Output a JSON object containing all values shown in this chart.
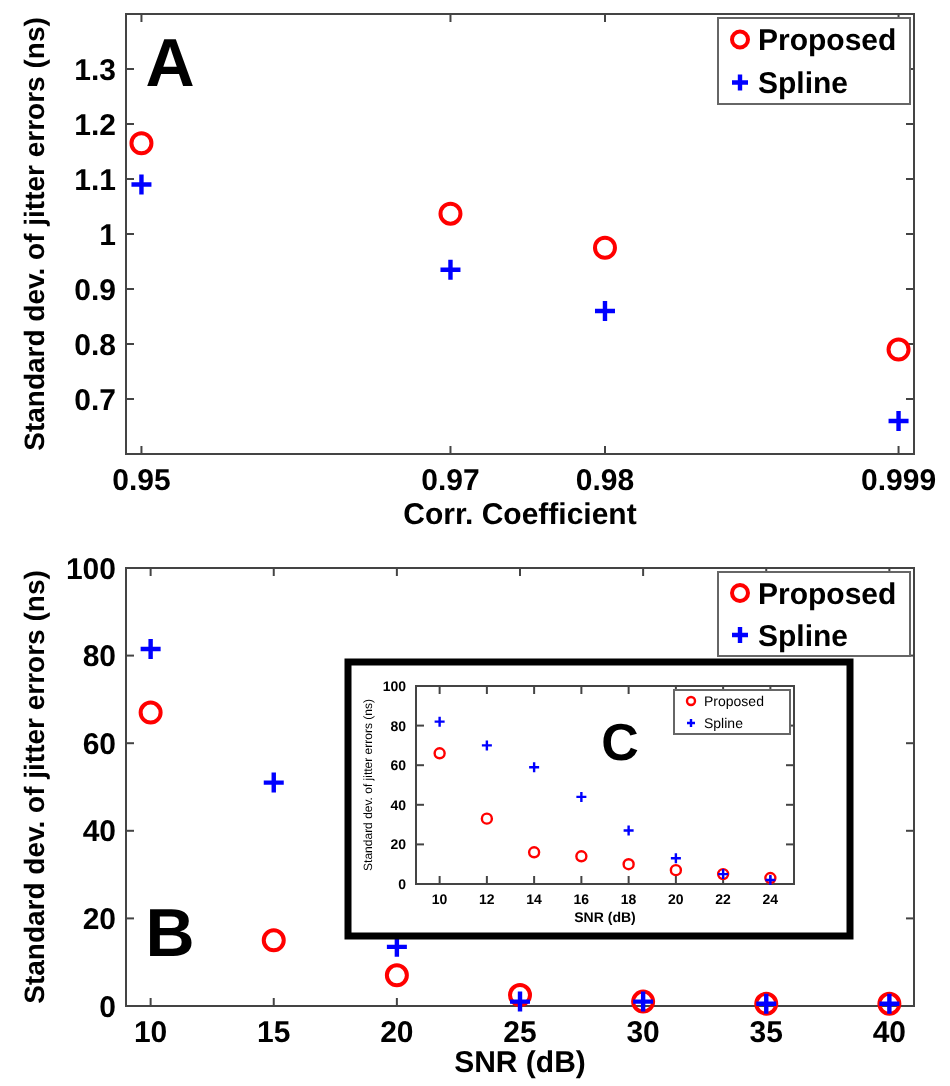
{
  "chart_data": [
    {
      "type": "scatter",
      "xlabel": "Corr. Coefficient",
      "ylabel": "Standard dev. of jitter errors (ns)",
      "annotations": [
        "A"
      ],
      "x": [
        0.95,
        0.97,
        0.98,
        0.999
      ],
      "xlim": [
        0.949,
        1.0
      ],
      "xticks": [
        0.95,
        0.97,
        0.98,
        0.999
      ],
      "ylim": [
        0.6,
        1.4
      ],
      "yticks": [
        0.7,
        0.8,
        0.9,
        1,
        1.1,
        1.2,
        1.3
      ],
      "legend": "top right",
      "series": [
        {
          "name": "Proposed",
          "color": "#ff0000",
          "marker": "circle",
          "values": [
            1.165,
            1.037,
            0.975,
            0.79
          ]
        },
        {
          "name": "Spline",
          "color": "#0000ff",
          "marker": "cross",
          "values": [
            1.09,
            0.935,
            0.86,
            0.66
          ]
        }
      ]
    },
    {
      "type": "scatter",
      "xlabel": "SNR (dB)",
      "ylabel": "Standard dev. of jitter errors (ns)",
      "annotations": [
        "B"
      ],
      "x": [
        10,
        15,
        20,
        25,
        30,
        35,
        40
      ],
      "xlim": [
        9,
        41
      ],
      "xticks": [
        10,
        15,
        20,
        25,
        30,
        35,
        40
      ],
      "ylim": [
        0,
        100
      ],
      "yticks": [
        0,
        20,
        40,
        60,
        80,
        100
      ],
      "legend": "top right",
      "series": [
        {
          "name": "Proposed",
          "color": "#ff0000",
          "marker": "circle",
          "values": [
            67,
            15,
            7,
            2.5,
            1,
            0.5,
            0.5
          ]
        },
        {
          "name": "Spline",
          "color": "#0000ff",
          "marker": "cross",
          "values": [
            81.5,
            51,
            13.5,
            1,
            1,
            0.5,
            0.5
          ]
        }
      ]
    },
    {
      "type": "scatter",
      "xlabel": "SNR (dB)",
      "ylabel": "Standard dev. of jitter errors (ns)",
      "annotations": [
        "C"
      ],
      "x": [
        10,
        12,
        14,
        16,
        18,
        20,
        22,
        24
      ],
      "xlim": [
        9,
        25
      ],
      "xticks": [
        10,
        12,
        14,
        16,
        18,
        20,
        22,
        24
      ],
      "ylim": [
        0,
        100
      ],
      "yticks": [
        0,
        20,
        40,
        60,
        80,
        100
      ],
      "legend": "top right",
      "series": [
        {
          "name": "Proposed",
          "color": "#ff0000",
          "marker": "circle",
          "values": [
            66,
            33,
            16,
            14,
            10,
            7,
            5,
            3
          ]
        },
        {
          "name": "Spline",
          "color": "#0000ff",
          "marker": "cross",
          "values": [
            82,
            70,
            59,
            44,
            27,
            13,
            5,
            2
          ]
        }
      ]
    }
  ]
}
